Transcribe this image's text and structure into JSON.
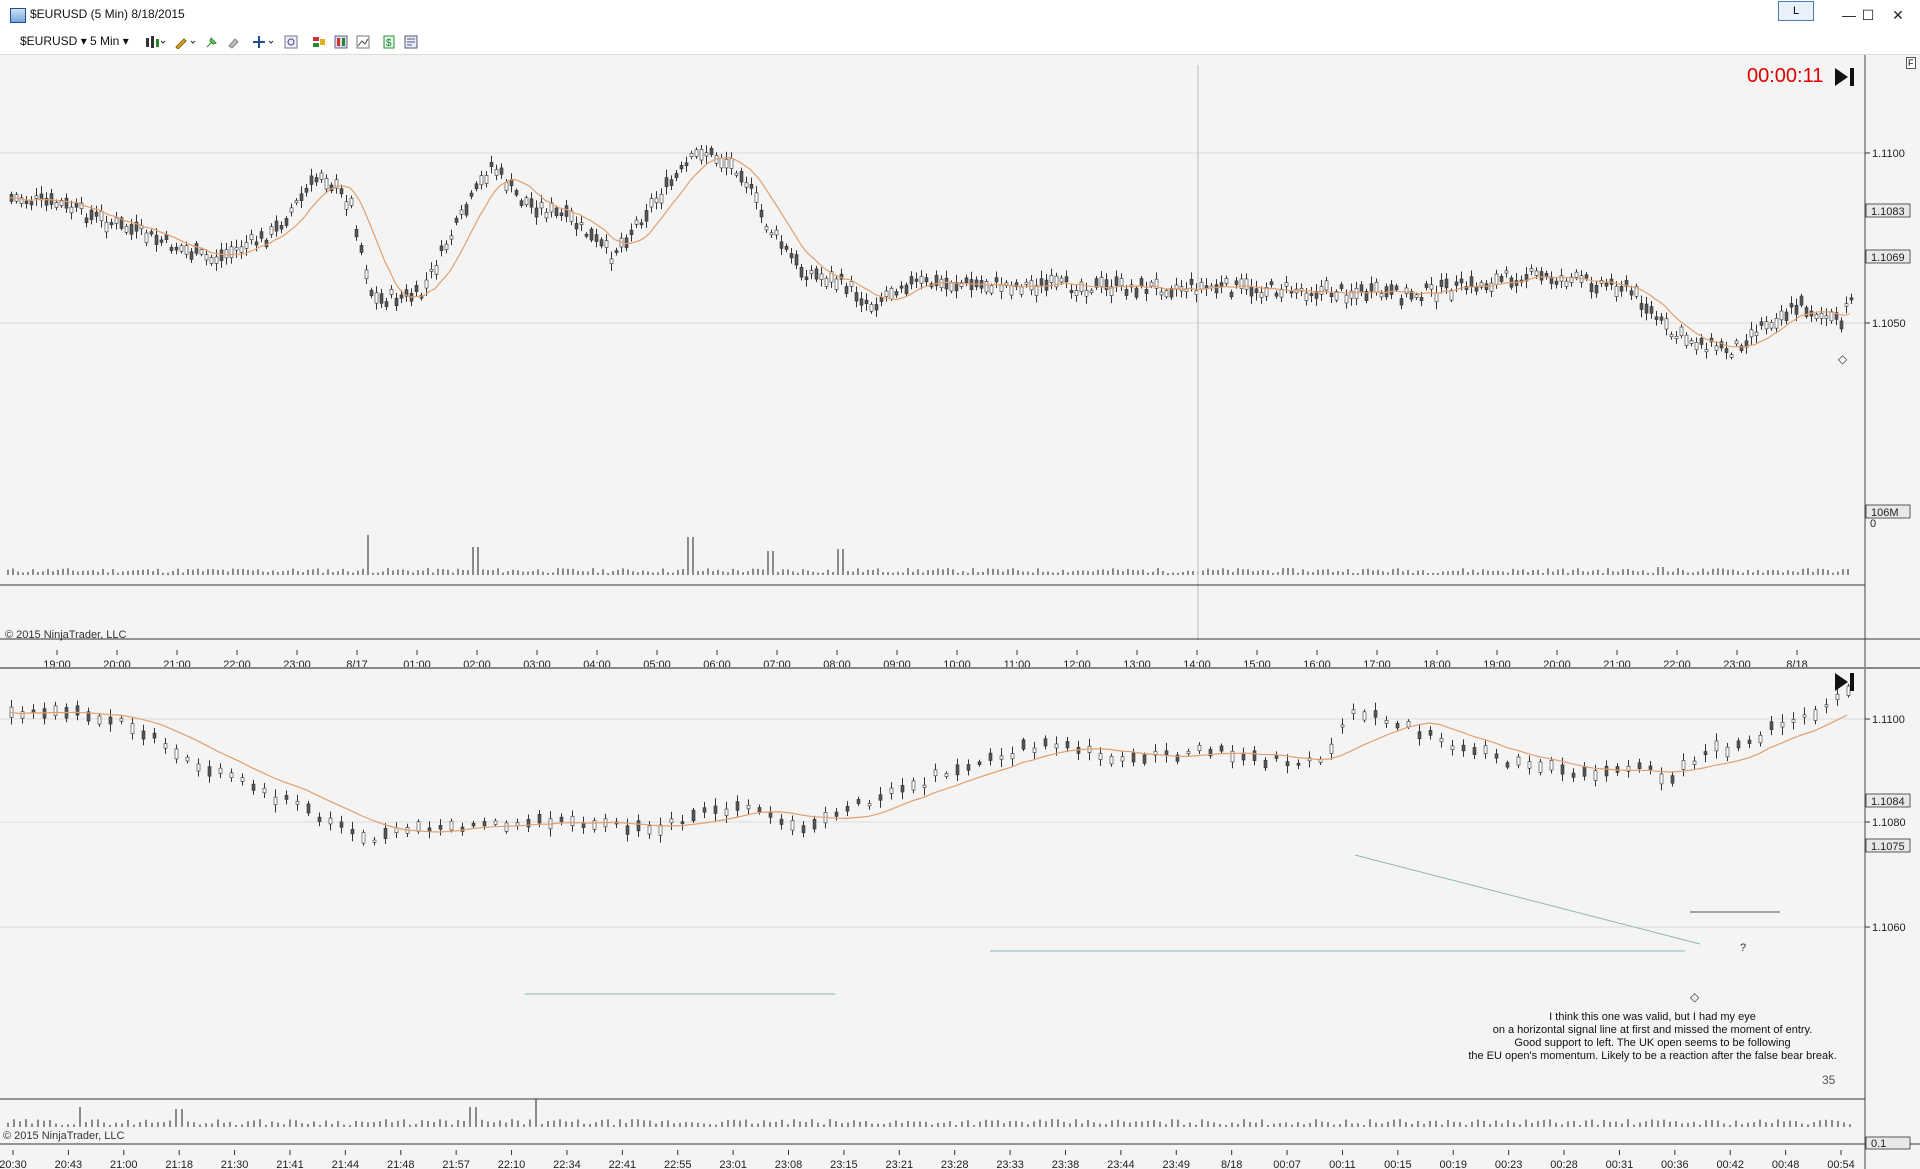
{
  "window": {
    "title": "$EURUSD (5 Min)  8/18/2015",
    "layout_button": "L",
    "minimize_glyph": "—",
    "maximize_glyph": "☐",
    "close_glyph": "✕"
  },
  "toolbar": {
    "instrument": "$EURUSD",
    "interval": "5 Min",
    "dropdown_glyph": "▾"
  },
  "top_chart": {
    "timer": "00:00:11",
    "copyright": "© 2015 NinjaTrader, LLC",
    "price_ticks": [
      "1.1100",
      "1.1050"
    ],
    "price_badges": [
      "1.1083",
      "1.1069"
    ],
    "volume_badge": "106M",
    "volume_zero": "0",
    "time_labels": [
      "19:00",
      "20:00",
      "21:00",
      "22:00",
      "23:00",
      "8/17",
      "01:00",
      "02:00",
      "03:00",
      "04:00",
      "05:00",
      "06:00",
      "07:00",
      "08:00",
      "09:00",
      "10:00",
      "11:00",
      "12:00",
      "13:00",
      "14:00",
      "15:00",
      "16:00",
      "17:00",
      "18:00",
      "19:00",
      "20:00",
      "21:00",
      "22:00",
      "23:00",
      "8/18"
    ],
    "panel_tab": "F",
    "colors": {
      "candle_body": "#555555",
      "ma_line": "#e0a070",
      "timer": "#e00000"
    }
  },
  "bottom_chart": {
    "copyright": "© 2015 NinjaTrader, LLC",
    "price_ticks": [
      "1.1100",
      "1.1080",
      "1.1060"
    ],
    "price_badges": [
      "1.1084",
      "1.1075"
    ],
    "volume_badge": "0.1",
    "question_mark": "?",
    "bar_number": "35",
    "annotation": [
      "I think this one was valid, but I had my eye",
      "on a horizontal signal line at first and missed the moment of entry.",
      "Good support to left. The UK open seems to be following",
      "the EU open's momentum. Likely to be a reaction after the false bear break."
    ],
    "time_labels": [
      "20:30",
      "20:43",
      "21:00",
      "21:18",
      "21:30",
      "21:41",
      "21:44",
      "21:48",
      "21:57",
      "22:10",
      "22:34",
      "22:41",
      "22:55",
      "23:01",
      "23:08",
      "23:15",
      "23:21",
      "23:28",
      "23:33",
      "23:38",
      "23:44",
      "23:49",
      "8/18",
      "00:07",
      "00:11",
      "00:15",
      "00:19",
      "00:23",
      "00:28",
      "00:31",
      "00:36",
      "00:42",
      "00:48",
      "00:54"
    ]
  }
}
